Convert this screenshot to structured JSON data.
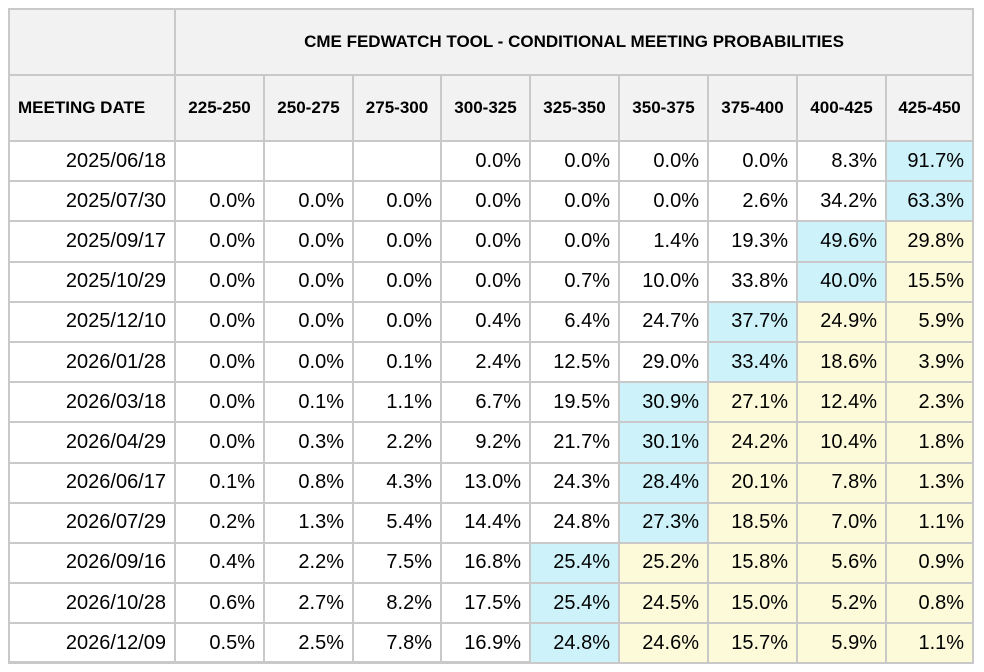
{
  "table": {
    "title": "CME FEDWATCH TOOL - CONDITIONAL MEETING PROBABILITIES",
    "date_header": "MEETING DATE",
    "columns": [
      "225-250",
      "250-275",
      "275-300",
      "300-325",
      "325-350",
      "350-375",
      "375-400",
      "400-425",
      "425-450"
    ],
    "colors": {
      "header_bg": "#f2f2f2",
      "highlight_max": "#cdf2fa",
      "highlight_above": "#fcfad9",
      "border": "#c9c9c9"
    },
    "rows": [
      {
        "date": "2025/06/18",
        "values": [
          "",
          "",
          "",
          "0.0%",
          "0.0%",
          "0.0%",
          "0.0%",
          "8.3%",
          "91.7%"
        ],
        "highlight": [
          "",
          "",
          "",
          "",
          "",
          "",
          "",
          "",
          "cyan"
        ]
      },
      {
        "date": "2025/07/30",
        "values": [
          "0.0%",
          "0.0%",
          "0.0%",
          "0.0%",
          "0.0%",
          "0.0%",
          "2.6%",
          "34.2%",
          "63.3%"
        ],
        "highlight": [
          "",
          "",
          "",
          "",
          "",
          "",
          "",
          "",
          "cyan"
        ]
      },
      {
        "date": "2025/09/17",
        "values": [
          "0.0%",
          "0.0%",
          "0.0%",
          "0.0%",
          "0.0%",
          "1.4%",
          "19.3%",
          "49.6%",
          "29.8%"
        ],
        "highlight": [
          "",
          "",
          "",
          "",
          "",
          "",
          "",
          "cyan",
          "yellow"
        ]
      },
      {
        "date": "2025/10/29",
        "values": [
          "0.0%",
          "0.0%",
          "0.0%",
          "0.0%",
          "0.7%",
          "10.0%",
          "33.8%",
          "40.0%",
          "15.5%"
        ],
        "highlight": [
          "",
          "",
          "",
          "",
          "",
          "",
          "",
          "cyan",
          "yellow"
        ]
      },
      {
        "date": "2025/12/10",
        "values": [
          "0.0%",
          "0.0%",
          "0.0%",
          "0.4%",
          "6.4%",
          "24.7%",
          "37.7%",
          "24.9%",
          "5.9%"
        ],
        "highlight": [
          "",
          "",
          "",
          "",
          "",
          "",
          "cyan",
          "yellow",
          "yellow"
        ]
      },
      {
        "date": "2026/01/28",
        "values": [
          "0.0%",
          "0.0%",
          "0.1%",
          "2.4%",
          "12.5%",
          "29.0%",
          "33.4%",
          "18.6%",
          "3.9%"
        ],
        "highlight": [
          "",
          "",
          "",
          "",
          "",
          "",
          "cyan",
          "yellow",
          "yellow"
        ]
      },
      {
        "date": "2026/03/18",
        "values": [
          "0.0%",
          "0.1%",
          "1.1%",
          "6.7%",
          "19.5%",
          "30.9%",
          "27.1%",
          "12.4%",
          "2.3%"
        ],
        "highlight": [
          "",
          "",
          "",
          "",
          "",
          "cyan",
          "yellow",
          "yellow",
          "yellow"
        ]
      },
      {
        "date": "2026/04/29",
        "values": [
          "0.0%",
          "0.3%",
          "2.2%",
          "9.2%",
          "21.7%",
          "30.1%",
          "24.2%",
          "10.4%",
          "1.8%"
        ],
        "highlight": [
          "",
          "",
          "",
          "",
          "",
          "cyan",
          "yellow",
          "yellow",
          "yellow"
        ]
      },
      {
        "date": "2026/06/17",
        "values": [
          "0.1%",
          "0.8%",
          "4.3%",
          "13.0%",
          "24.3%",
          "28.4%",
          "20.1%",
          "7.8%",
          "1.3%"
        ],
        "highlight": [
          "",
          "",
          "",
          "",
          "",
          "cyan",
          "yellow",
          "yellow",
          "yellow"
        ]
      },
      {
        "date": "2026/07/29",
        "values": [
          "0.2%",
          "1.3%",
          "5.4%",
          "14.4%",
          "24.8%",
          "27.3%",
          "18.5%",
          "7.0%",
          "1.1%"
        ],
        "highlight": [
          "",
          "",
          "",
          "",
          "",
          "cyan",
          "yellow",
          "yellow",
          "yellow"
        ]
      },
      {
        "date": "2026/09/16",
        "values": [
          "0.4%",
          "2.2%",
          "7.5%",
          "16.8%",
          "25.4%",
          "25.2%",
          "15.8%",
          "5.6%",
          "0.9%"
        ],
        "highlight": [
          "",
          "",
          "",
          "",
          "cyan",
          "yellow",
          "yellow",
          "yellow",
          "yellow"
        ]
      },
      {
        "date": "2026/10/28",
        "values": [
          "0.6%",
          "2.7%",
          "8.2%",
          "17.5%",
          "25.4%",
          "24.5%",
          "15.0%",
          "5.2%",
          "0.8%"
        ],
        "highlight": [
          "",
          "",
          "",
          "",
          "cyan",
          "yellow",
          "yellow",
          "yellow",
          "yellow"
        ]
      },
      {
        "date": "2026/12/09",
        "values": [
          "0.5%",
          "2.5%",
          "7.8%",
          "16.9%",
          "24.8%",
          "24.6%",
          "15.7%",
          "5.9%",
          "1.1%"
        ],
        "highlight": [
          "",
          "",
          "",
          "",
          "cyan",
          "yellow",
          "yellow",
          "yellow",
          "yellow"
        ]
      }
    ]
  }
}
